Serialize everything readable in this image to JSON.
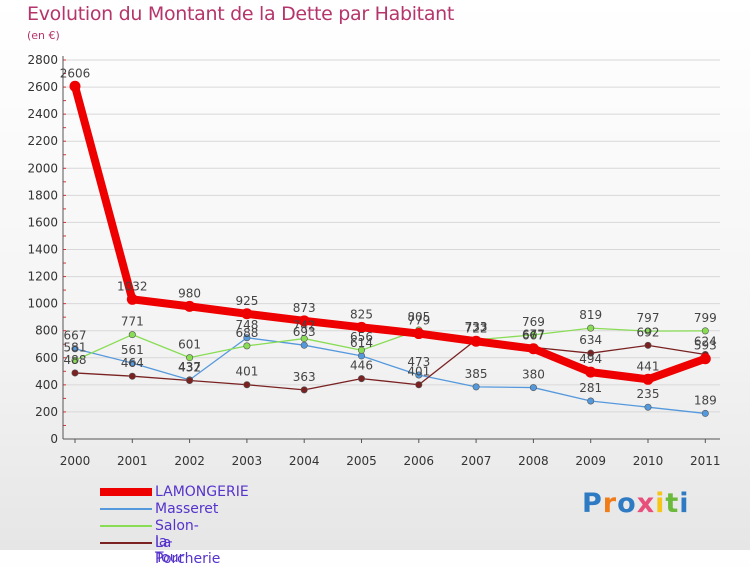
{
  "page": {
    "title": "Evolution du Montant de la Dette par Habitant",
    "subtitle": "(en €)",
    "logo_letters": [
      "P",
      "r",
      "o",
      "x",
      "i",
      "t",
      "i"
    ]
  },
  "colors": {
    "title": "#b5346b",
    "logo": [
      "#2e7bc4",
      "#f07d1a",
      "#2e7bc4",
      "#e84f7b",
      "#f5c518",
      "#6cba3c",
      "#2e7bc4"
    ]
  },
  "chart_data": {
    "type": "line",
    "title": "Evolution du Montant de la Dette par Habitant",
    "subtitle": "(en €)",
    "xlabel": "",
    "ylabel": "",
    "x": [
      "2000",
      "2001",
      "2002",
      "2003",
      "2004",
      "2005",
      "2006",
      "2007",
      "2008",
      "2009",
      "2010",
      "2011"
    ],
    "ylim": [
      0,
      2800
    ],
    "yticks": [
      0,
      200,
      400,
      600,
      800,
      1000,
      1200,
      1400,
      1600,
      1800,
      2000,
      2200,
      2400,
      2600,
      2800
    ],
    "grid": "horizontal",
    "legend_position": "bottom-left",
    "series": [
      {
        "name": "LAMONGERIE",
        "color": "#ee0000",
        "values": [
          2606,
          1032,
          980,
          925,
          873,
          825,
          779,
          722,
          667,
          494,
          441,
          593
        ]
      },
      {
        "name": "Masseret",
        "color": "#5599dd",
        "values": [
          667,
          561,
          437,
          748,
          693,
          614,
          473,
          385,
          380,
          281,
          235,
          189
        ]
      },
      {
        "name": "Salon-la-Tour",
        "color": "#88dd55",
        "values": [
          581,
          771,
          601,
          688,
          742,
          656,
          805,
          733,
          769,
          819,
          797,
          799
        ]
      },
      {
        "name": "La Porcherie",
        "color": "#7a2222",
        "values": [
          488,
          464,
          432,
          401,
          363,
          446,
          401,
          733,
          677,
          634,
          692,
          624
        ]
      }
    ]
  }
}
